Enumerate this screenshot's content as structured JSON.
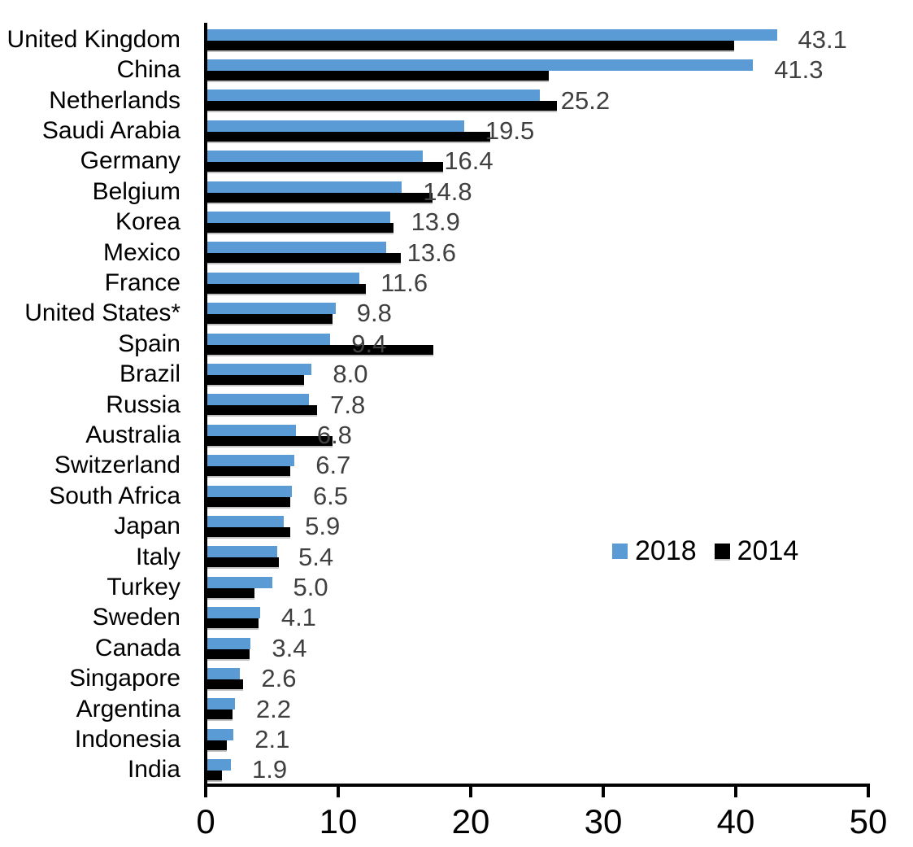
{
  "chart_data": {
    "type": "bar",
    "orientation": "horizontal",
    "title": "",
    "xlabel": "",
    "ylabel": "",
    "xlim": [
      0,
      50
    ],
    "xticks": [
      0,
      10,
      20,
      30,
      40,
      50
    ],
    "grid": false,
    "legend_position": "middle-right",
    "categories": [
      "United Kingdom",
      "China",
      "Netherlands",
      "Saudi Arabia",
      "Germany",
      "Belgium",
      "Korea",
      "Mexico",
      "France",
      "United States*",
      "Spain",
      "Brazil",
      "Russia",
      "Australia",
      "Switzerland",
      "South Africa",
      "Japan",
      "Italy",
      "Turkey",
      "Sweden",
      "Canada",
      "Singapore",
      "Argentina",
      "Indonesia",
      "India"
    ],
    "series": [
      {
        "name": "2018",
        "color": "#5B9BD5",
        "values": [
          43.1,
          41.3,
          25.2,
          19.5,
          16.4,
          14.8,
          13.9,
          13.6,
          11.6,
          9.8,
          9.4,
          8.0,
          7.8,
          6.8,
          6.7,
          6.5,
          5.9,
          5.4,
          5.0,
          4.1,
          3.4,
          2.6,
          2.2,
          2.1,
          1.9
        ]
      },
      {
        "name": "2014",
        "color": "#000000",
        "values": [
          39.9,
          25.9,
          26.5,
          21.5,
          17.9,
          17.1,
          14.2,
          14.7,
          12.1,
          9.6,
          17.2,
          7.4,
          8.4,
          9.6,
          6.4,
          6.4,
          6.4,
          5.5,
          3.7,
          4.0,
          3.3,
          2.8,
          2.0,
          1.6,
          1.2
        ]
      }
    ],
    "data_labels": {
      "on_series": "2018",
      "values": [
        "43.1",
        "41.3",
        "25.2",
        "19.5",
        "16.4",
        "14.8",
        "13.9",
        "13.6",
        "11.6",
        "9.8",
        "9.4",
        "8.0",
        "7.8",
        "6.8",
        "6.7",
        "6.5",
        "5.9",
        "5.4",
        "5.0",
        "4.1",
        "3.4",
        "2.6",
        "2.2",
        "2.1",
        "1.9"
      ],
      "color": "#404040"
    },
    "axis_color": "#000000",
    "tick_label_color": "#000000"
  }
}
